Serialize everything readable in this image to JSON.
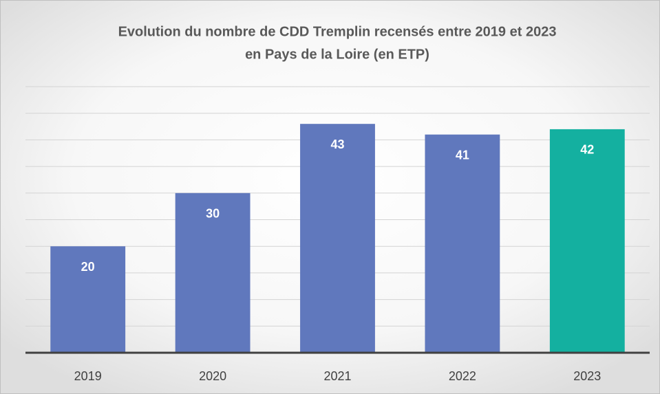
{
  "chart_data": {
    "type": "bar",
    "title": [
      "Evolution du nombre de CDD Tremplin recensés entre 2019 et 2023",
      "en Pays de la Loire (en ETP)"
    ],
    "categories": [
      "2019",
      "2020",
      "2021",
      "2022",
      "2023"
    ],
    "values": [
      20,
      30,
      43,
      41,
      42
    ],
    "colors": [
      "#6078bd",
      "#6078bd",
      "#6078bd",
      "#6078bd",
      "#14b0a0"
    ],
    "ylim": [
      0,
      50
    ],
    "yticks": [
      0,
      5,
      10,
      15,
      20,
      25,
      30,
      35,
      40,
      45,
      50
    ],
    "grid": true
  }
}
